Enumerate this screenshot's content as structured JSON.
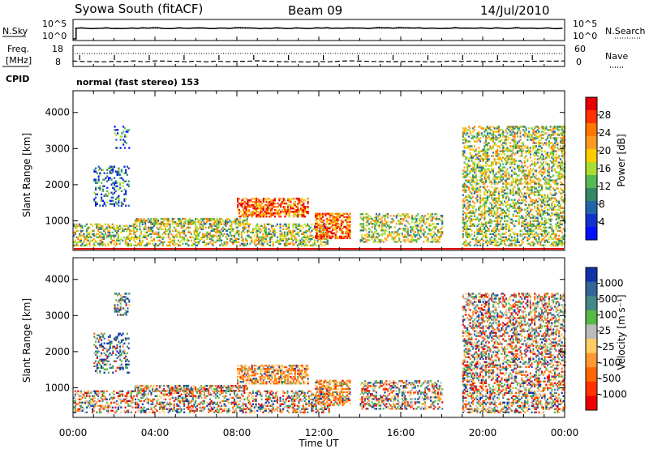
{
  "header": {
    "station": "Syowa South (fitACF)",
    "beam": "Beam 09",
    "date": "14/Jul/2010"
  },
  "noise_panel": {
    "left_label": "N.Sky",
    "left_ticks": [
      "10^5",
      "10^0"
    ],
    "right_label": "N.Search",
    "right_ticks": [
      "10^5",
      "10^0"
    ]
  },
  "freq_panel": {
    "left_label_line1": "Freq.",
    "left_label_line2": "[MHz]",
    "left_ticks": [
      "18",
      "8"
    ],
    "right_label": "Nave",
    "right_ticks": [
      "60",
      "0"
    ],
    "cpid_label": "CPID",
    "cpid_text": "normal (fast stereo) 153"
  },
  "time_axis": {
    "label": "Time UT",
    "ticks": [
      "00:00",
      "04:00",
      "08:00",
      "12:00",
      "16:00",
      "20:00",
      "00:00"
    ]
  },
  "chart_data": [
    {
      "type": "heatmap",
      "name": "power",
      "ylabel": "Slant Range [km]",
      "yticks": [
        "4000",
        "3000",
        "2000",
        "1000"
      ],
      "ylim": [
        180,
        4600
      ],
      "xlim_hours": [
        0,
        24
      ],
      "colorbar": {
        "label": "Power [dB]",
        "ticks": [
          "28",
          "24",
          "20",
          "16",
          "12",
          "8",
          "4"
        ],
        "colors": [
          "#e60000",
          "#ff3300",
          "#ff7700",
          "#ff9922",
          "#ffcc00",
          "#aadd33",
          "#55bb55",
          "#338866",
          "#2266aa",
          "#1133cc",
          "#0011ff"
        ]
      },
      "echo_regions": [
        {
          "t": [
            2.0,
            2.7
          ],
          "r": [
            3000,
            3600
          ],
          "level": "weak"
        },
        {
          "t": [
            1.0,
            2.7
          ],
          "r": [
            1400,
            2500
          ],
          "level": "weak"
        },
        {
          "t": [
            0.0,
            12.5
          ],
          "r": [
            300,
            900
          ],
          "level": "mixed"
        },
        {
          "t": [
            3.0,
            8.5
          ],
          "r": [
            900,
            1050
          ],
          "level": "medium"
        },
        {
          "t": [
            8.0,
            11.5
          ],
          "r": [
            1100,
            1600
          ],
          "level": "strong"
        },
        {
          "t": [
            11.8,
            13.5
          ],
          "r": [
            500,
            1200
          ],
          "level": "strong"
        },
        {
          "t": [
            14.0,
            18.0
          ],
          "r": [
            400,
            1200
          ],
          "level": "mixed"
        },
        {
          "t": [
            19.0,
            24.0
          ],
          "r": [
            300,
            3600
          ],
          "level": "mixed"
        }
      ]
    },
    {
      "type": "heatmap",
      "name": "velocity",
      "ylabel": "Slant Range [km]",
      "yticks": [
        "4000",
        "3000",
        "2000",
        "1000"
      ],
      "ylim": [
        180,
        4600
      ],
      "xlim_hours": [
        0,
        24
      ],
      "colorbar": {
        "label": "Velocity [m s⁻¹]",
        "ticks": [
          "1000",
          "500",
          "100",
          "25",
          "-25",
          "-100",
          "-500",
          "-1000"
        ],
        "colors": [
          "#1133aa",
          "#336699",
          "#448888",
          "#55bb44",
          "#bbbbbb",
          "#ffcc66",
          "#ff9933",
          "#ff6600",
          "#ff3300",
          "#ee0000"
        ]
      },
      "echo_regions": [
        {
          "t": [
            2.0,
            2.7
          ],
          "r": [
            3000,
            3600
          ],
          "level": "weak"
        },
        {
          "t": [
            1.0,
            2.7
          ],
          "r": [
            1400,
            2500
          ],
          "level": "weak"
        },
        {
          "t": [
            0.0,
            12.5
          ],
          "r": [
            300,
            900
          ],
          "level": "mixed"
        },
        {
          "t": [
            3.0,
            8.5
          ],
          "r": [
            900,
            1050
          ],
          "level": "medium"
        },
        {
          "t": [
            8.0,
            11.5
          ],
          "r": [
            1100,
            1600
          ],
          "level": "strong"
        },
        {
          "t": [
            11.8,
            13.5
          ],
          "r": [
            500,
            1200
          ],
          "level": "strong"
        },
        {
          "t": [
            14.0,
            18.0
          ],
          "r": [
            400,
            1200
          ],
          "level": "mixed"
        },
        {
          "t": [
            19.0,
            24.0
          ],
          "r": [
            300,
            3600
          ],
          "level": "mixed"
        }
      ]
    }
  ]
}
